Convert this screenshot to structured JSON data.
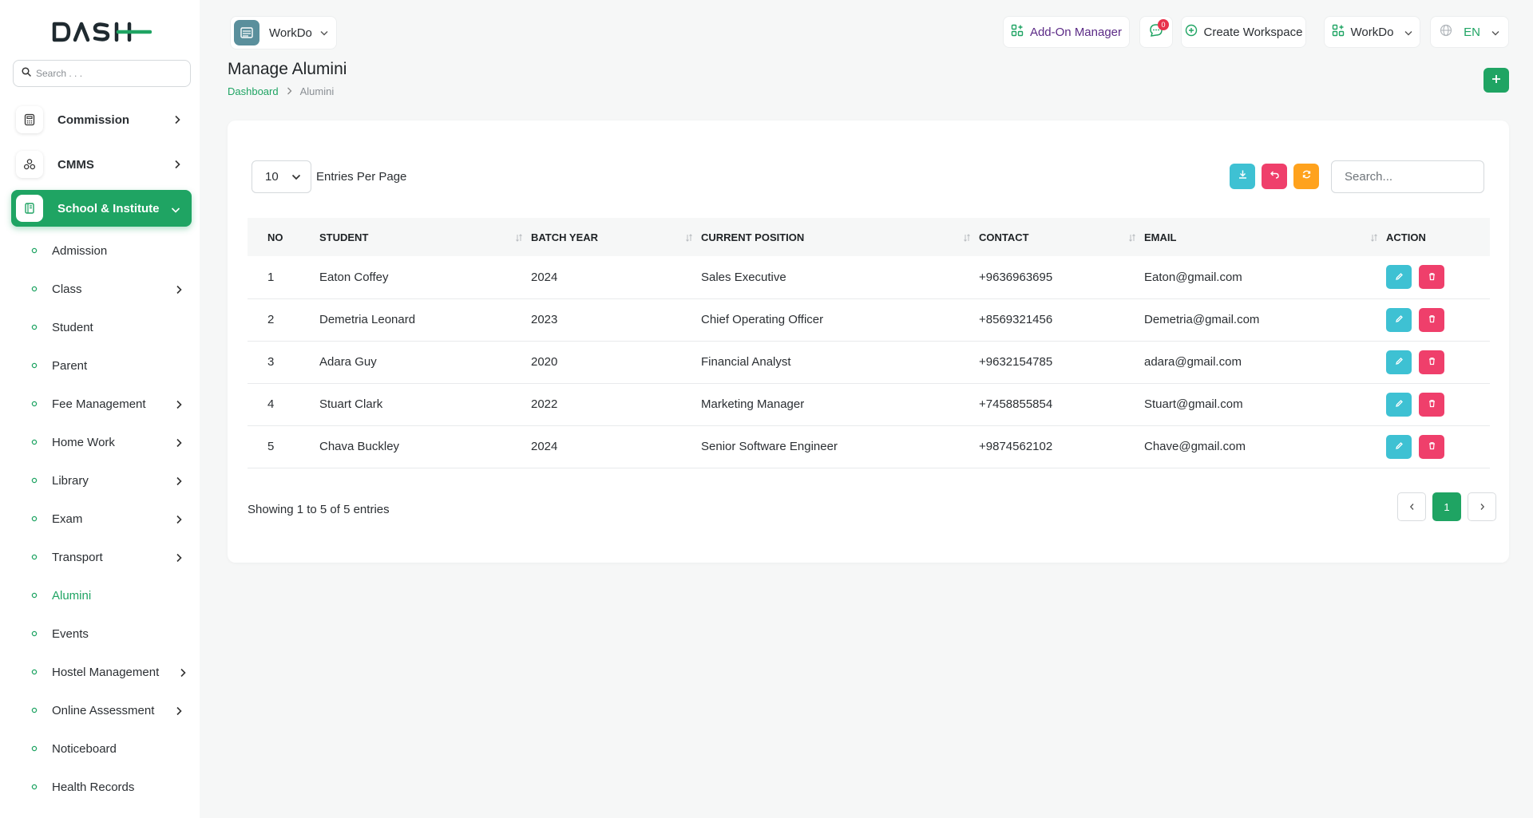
{
  "sidebar": {
    "search_placeholder": "Search . . .",
    "main_items": [
      {
        "label": "Commission",
        "icon": "calculator-icon"
      },
      {
        "label": "CMMS",
        "icon": "nodes-icon"
      },
      {
        "label": "School & Institute",
        "icon": "book-icon"
      }
    ],
    "sub_items": [
      {
        "label": "Admission"
      },
      {
        "label": "Class"
      },
      {
        "label": "Student"
      },
      {
        "label": "Parent"
      },
      {
        "label": "Fee Management"
      },
      {
        "label": "Home Work"
      },
      {
        "label": "Library"
      },
      {
        "label": "Exam"
      },
      {
        "label": "Transport"
      },
      {
        "label": "Alumini"
      },
      {
        "label": "Events"
      },
      {
        "label": "Hostel Management"
      },
      {
        "label": "Online Assessment"
      },
      {
        "label": "Noticeboard"
      },
      {
        "label": "Health Records"
      }
    ]
  },
  "topbar": {
    "workspace_name": "WorkDo",
    "addon_label": "Add-On Manager",
    "message_count": "0",
    "create_workspace_label": "Create Workspace",
    "workspace_menu_label": "WorkDo",
    "language": "EN"
  },
  "page": {
    "title": "Manage Alumini",
    "breadcrumb_home": "Dashboard",
    "breadcrumb_current": "Alumini"
  },
  "table": {
    "entries_value": "10",
    "entries_label": "Entries Per Page",
    "search_placeholder": "Search...",
    "columns": [
      "NO",
      "STUDENT",
      "BATCH YEAR",
      "CURRENT POSITION",
      "CONTACT",
      "EMAIL",
      "ACTION"
    ],
    "rows": [
      {
        "no": "1",
        "student": "Eaton Coffey",
        "batch": "2024",
        "position": "Sales Executive",
        "contact": "+9636963695",
        "email": "Eaton@gmail.com"
      },
      {
        "no": "2",
        "student": "Demetria Leonard",
        "batch": "2023",
        "position": "Chief Operating Officer",
        "contact": "+8569321456",
        "email": "Demetria@gmail.com"
      },
      {
        "no": "3",
        "student": "Adara Guy",
        "batch": "2020",
        "position": "Financial Analyst",
        "contact": "+9632154785",
        "email": "adara@gmail.com"
      },
      {
        "no": "4",
        "student": "Stuart Clark",
        "batch": "2022",
        "position": "Marketing Manager",
        "contact": "+7458855854",
        "email": "Stuart@gmail.com"
      },
      {
        "no": "5",
        "student": "Chava Buckley",
        "batch": "2024",
        "position": "Senior Software Engineer",
        "contact": "+9874562102",
        "email": "Chave@gmail.com"
      }
    ],
    "showing_text": "Showing 1 to 5 of 5 entries",
    "current_page": "1"
  },
  "colors": {
    "brand_green": "#1fa463",
    "export_cyan": "#3ec1d3",
    "reset_pink": "#ef3f6b",
    "refresh_orange": "#ffa21d"
  }
}
